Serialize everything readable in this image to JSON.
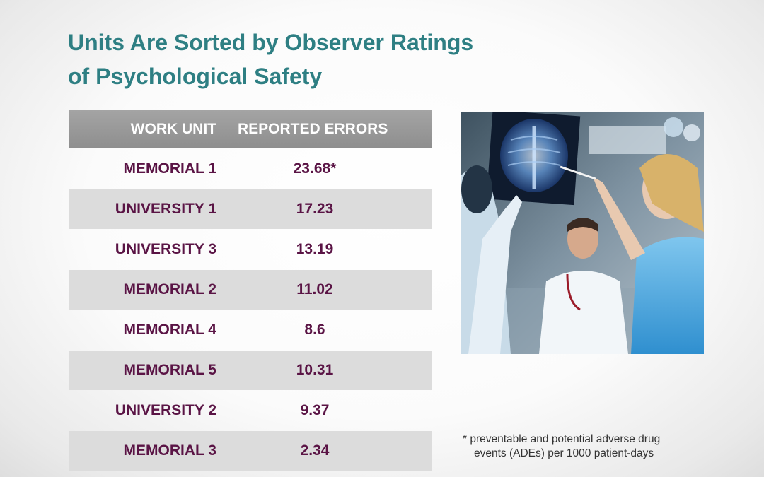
{
  "title": {
    "line1": "Units Are Sorted by Observer Ratings",
    "line2": "of Psychological Safety"
  },
  "table": {
    "headers": {
      "unit": "WORK UNIT",
      "errors": "REPORTED ERRORS"
    },
    "rows": [
      {
        "unit": "MEMORIAL 1",
        "errors": "23.68*"
      },
      {
        "unit": "UNIVERSITY 1",
        "errors": "17.23"
      },
      {
        "unit": "UNIVERSITY 3",
        "errors": "13.19"
      },
      {
        "unit": "MEMORIAL 2",
        "errors": "11.02"
      },
      {
        "unit": "MEMORIAL 4",
        "errors": "8.6"
      },
      {
        "unit": "MEMORIAL 5",
        "errors": "10.31"
      },
      {
        "unit": "UNIVERSITY 2",
        "errors": "9.37"
      },
      {
        "unit": "MEMORIAL 3",
        "errors": "2.34"
      }
    ]
  },
  "footnote": {
    "line1": "* preventable and potential adverse drug",
    "line2": "events (ADEs) per 1000 patient-days"
  },
  "colors": {
    "title": "#2e7f83",
    "row_text": "#5a1445",
    "header_bg": "#999999",
    "stripe": "#dcdcdc"
  }
}
